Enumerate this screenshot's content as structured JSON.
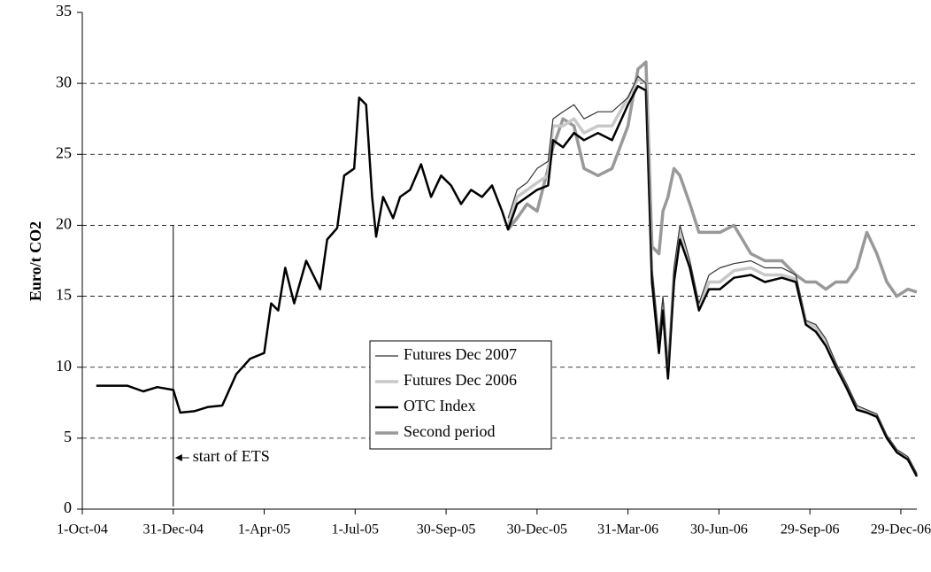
{
  "chart_data": {
    "type": "line",
    "y_label": "Euro/t CO2",
    "x": [
      "2004-10-15",
      "2004-11-01",
      "2004-11-15",
      "2004-12-01",
      "2004-12-15",
      "2004-12-31",
      "2005-01-07",
      "2005-01-21",
      "2005-02-04",
      "2005-02-18",
      "2005-03-04",
      "2005-03-18",
      "2005-04-01",
      "2005-04-08",
      "2005-04-15",
      "2005-04-22",
      "2005-05-01",
      "2005-05-13",
      "2005-05-27",
      "2005-06-03",
      "2005-06-13",
      "2005-06-20",
      "2005-06-30",
      "2005-07-05",
      "2005-07-12",
      "2005-07-18",
      "2005-07-22",
      "2005-07-29",
      "2005-08-08",
      "2005-08-15",
      "2005-08-25",
      "2005-09-05",
      "2005-09-15",
      "2005-09-25",
      "2005-10-05",
      "2005-10-15",
      "2005-10-25",
      "2005-11-05",
      "2005-11-15",
      "2005-11-25",
      "2005-12-01",
      "2005-12-10",
      "2005-12-20",
      "2005-12-30",
      "2006-01-10",
      "2006-01-15",
      "2006-01-25",
      "2006-02-05",
      "2006-02-15",
      "2006-03-01",
      "2006-03-15",
      "2006-03-31",
      "2006-04-10",
      "2006-04-18",
      "2006-04-24",
      "2006-05-01",
      "2006-05-05",
      "2006-05-10",
      "2006-05-16",
      "2006-05-22",
      "2006-06-01",
      "2006-06-10",
      "2006-06-20",
      "2006-07-01",
      "2006-07-15",
      "2006-08-01",
      "2006-08-15",
      "2006-09-01",
      "2006-09-15",
      "2006-09-25",
      "2006-10-05",
      "2006-10-15",
      "2006-10-25",
      "2006-11-05",
      "2006-11-15",
      "2006-11-25",
      "2006-12-05",
      "2006-12-15",
      "2006-12-25",
      "2007-01-05",
      "2007-01-14"
    ],
    "series": [
      {
        "name": "Futures Dec 2007",
        "color": "#333333",
        "width": 1.2,
        "values": [
          null,
          null,
          null,
          null,
          null,
          null,
          null,
          null,
          null,
          null,
          null,
          null,
          null,
          null,
          null,
          null,
          null,
          null,
          null,
          null,
          null,
          null,
          null,
          null,
          null,
          null,
          null,
          null,
          null,
          null,
          null,
          null,
          null,
          null,
          null,
          null,
          null,
          null,
          null,
          null,
          20.5,
          22.5,
          23.0,
          24.0,
          24.5,
          27.5,
          28.0,
          28.5,
          27.5,
          28.0,
          28.0,
          29.0,
          30.5,
          30.0,
          17.0,
          12.0,
          15.0,
          10.0,
          17.0,
          20.0,
          17.5,
          14.5,
          16.5,
          17.0,
          17.3,
          17.5,
          17.0,
          17.0,
          16.5,
          13.3,
          13.0,
          12.0,
          10.3,
          8.8,
          7.3,
          7.0,
          6.7,
          5.2,
          4.2,
          3.7,
          2.5
        ]
      },
      {
        "name": "Futures Dec 2006",
        "color": "#c8c8c8",
        "width": 3.5,
        "values": [
          null,
          null,
          null,
          null,
          null,
          null,
          null,
          null,
          null,
          null,
          null,
          null,
          null,
          null,
          null,
          null,
          null,
          null,
          null,
          null,
          null,
          null,
          null,
          null,
          null,
          null,
          null,
          null,
          null,
          null,
          null,
          null,
          null,
          null,
          null,
          null,
          null,
          null,
          null,
          null,
          20.0,
          22.0,
          22.5,
          23.0,
          23.5,
          27.0,
          27.0,
          27.5,
          26.5,
          27.0,
          27.0,
          29.0,
          30.3,
          30.0,
          16.5,
          11.5,
          14.5,
          9.5,
          16.5,
          19.5,
          17.0,
          14.2,
          16.0,
          16.0,
          16.8,
          17.0,
          16.5,
          16.5,
          16.2,
          13.2,
          12.8,
          11.8,
          10.2,
          8.6,
          7.2,
          6.9,
          6.6,
          5.1,
          4.1,
          3.6,
          2.4
        ]
      },
      {
        "name": "OTC Index",
        "color": "#000000",
        "width": 2.5,
        "values": [
          8.7,
          8.7,
          8.7,
          8.3,
          8.6,
          8.4,
          6.8,
          6.9,
          7.2,
          7.3,
          9.5,
          10.6,
          11.0,
          14.5,
          14.0,
          17.0,
          14.5,
          17.5,
          15.5,
          19.0,
          19.8,
          23.5,
          24.0,
          29.0,
          28.5,
          22.0,
          19.2,
          22.0,
          20.5,
          22.0,
          22.5,
          24.3,
          22.0,
          23.5,
          22.8,
          21.5,
          22.5,
          22.0,
          22.8,
          21.0,
          19.7,
          21.5,
          22.0,
          22.5,
          22.8,
          26.0,
          25.5,
          26.5,
          26.0,
          26.5,
          26.0,
          28.5,
          29.8,
          29.5,
          16.0,
          11.0,
          14.0,
          9.2,
          16.0,
          19.0,
          17.0,
          14.0,
          15.5,
          15.5,
          16.3,
          16.5,
          16.0,
          16.3,
          16.0,
          13.0,
          12.5,
          11.5,
          10.0,
          8.5,
          7.0,
          6.8,
          6.5,
          5.0,
          4.0,
          3.5,
          2.3
        ]
      },
      {
        "name": "Second period",
        "color": "#999999",
        "width": 3.5,
        "values": [
          null,
          null,
          null,
          null,
          null,
          null,
          null,
          null,
          null,
          null,
          null,
          null,
          null,
          null,
          null,
          null,
          null,
          null,
          null,
          null,
          null,
          null,
          null,
          null,
          null,
          null,
          null,
          null,
          null,
          null,
          null,
          null,
          null,
          null,
          null,
          null,
          null,
          null,
          null,
          null,
          19.7,
          20.5,
          21.5,
          21.0,
          24.0,
          25.5,
          27.5,
          27.0,
          24.0,
          23.5,
          24.0,
          27.0,
          31.0,
          31.5,
          18.5,
          18.0,
          21.0,
          22.0,
          24.0,
          23.5,
          21.5,
          19.5,
          19.5,
          19.5,
          20.0,
          18.0,
          17.5,
          17.5,
          16.5,
          16.0,
          16.0,
          15.5,
          16.0,
          16.0,
          17.0,
          19.5,
          18.0,
          16.0,
          15.0,
          15.5,
          15.3
        ]
      }
    ],
    "xlim": [
      "2004-10-01",
      "2007-01-14"
    ],
    "xticks": [
      {
        "value": "2004-10-01",
        "label": "1-Oct-04"
      },
      {
        "value": "2004-12-31",
        "label": "31-Dec-04"
      },
      {
        "value": "2005-04-01",
        "label": "1-Apr-05"
      },
      {
        "value": "2005-07-01",
        "label": "1-Jul-05"
      },
      {
        "value": "2005-09-30",
        "label": "30-Sep-05"
      },
      {
        "value": "2005-12-30",
        "label": "30-Dec-05"
      },
      {
        "value": "2006-03-31",
        "label": "31-Mar-06"
      },
      {
        "value": "2006-06-30",
        "label": "30-Jun-06"
      },
      {
        "value": "2006-09-29",
        "label": "29-Sep-06"
      },
      {
        "value": "2006-12-29",
        "label": "29-Dec-06"
      }
    ],
    "ylim": [
      0,
      35
    ],
    "yticks": [
      0,
      5,
      10,
      15,
      20,
      25,
      30,
      35
    ],
    "grid": true,
    "legend": "center",
    "annotations": [
      {
        "text": "start of ETS",
        "x": "2004-12-31"
      }
    ]
  }
}
